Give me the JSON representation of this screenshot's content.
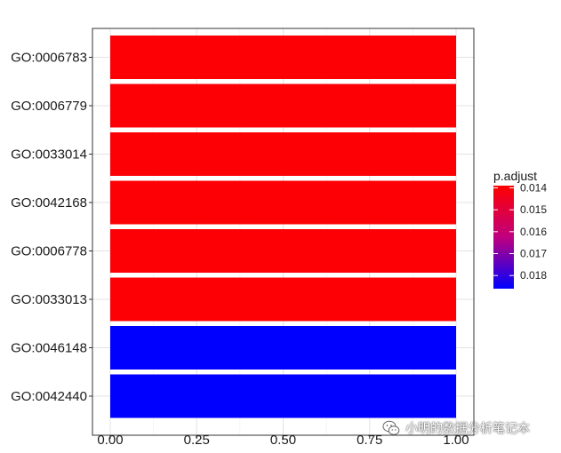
{
  "chart_data": {
    "type": "bar",
    "orientation": "horizontal",
    "categories": [
      "GO:0006783",
      "GO:0006779",
      "GO:0033014",
      "GO:0042168",
      "GO:0006778",
      "GO:0033013",
      "GO:0046148",
      "GO:0042440"
    ],
    "values": [
      1,
      1,
      1,
      1,
      1,
      1,
      1,
      1
    ],
    "p_adjust": [
      0.014,
      0.014,
      0.014,
      0.014,
      0.014,
      0.014,
      0.0186,
      0.0186
    ],
    "xlim": [
      0,
      1
    ],
    "xticks": [
      0,
      0.25,
      0.5,
      0.75,
      1
    ],
    "xtick_labels": [
      "0.00",
      "0.25",
      "0.50",
      "0.75",
      "1.00"
    ],
    "grid": true,
    "legend": {
      "title": "p.adjust",
      "placement": "right",
      "ticks": [
        0.014,
        0.015,
        0.016,
        0.017,
        0.018
      ],
      "tick_labels": [
        "0.014",
        "0.015",
        "0.016",
        "0.017",
        "0.018"
      ],
      "range": [
        0.0139,
        0.0186
      ],
      "color_low": "#FF0000",
      "color_high": "#0000FF"
    }
  },
  "watermark": {
    "icon": "wechat-icon",
    "text": "小明的数据分析笔记本"
  }
}
